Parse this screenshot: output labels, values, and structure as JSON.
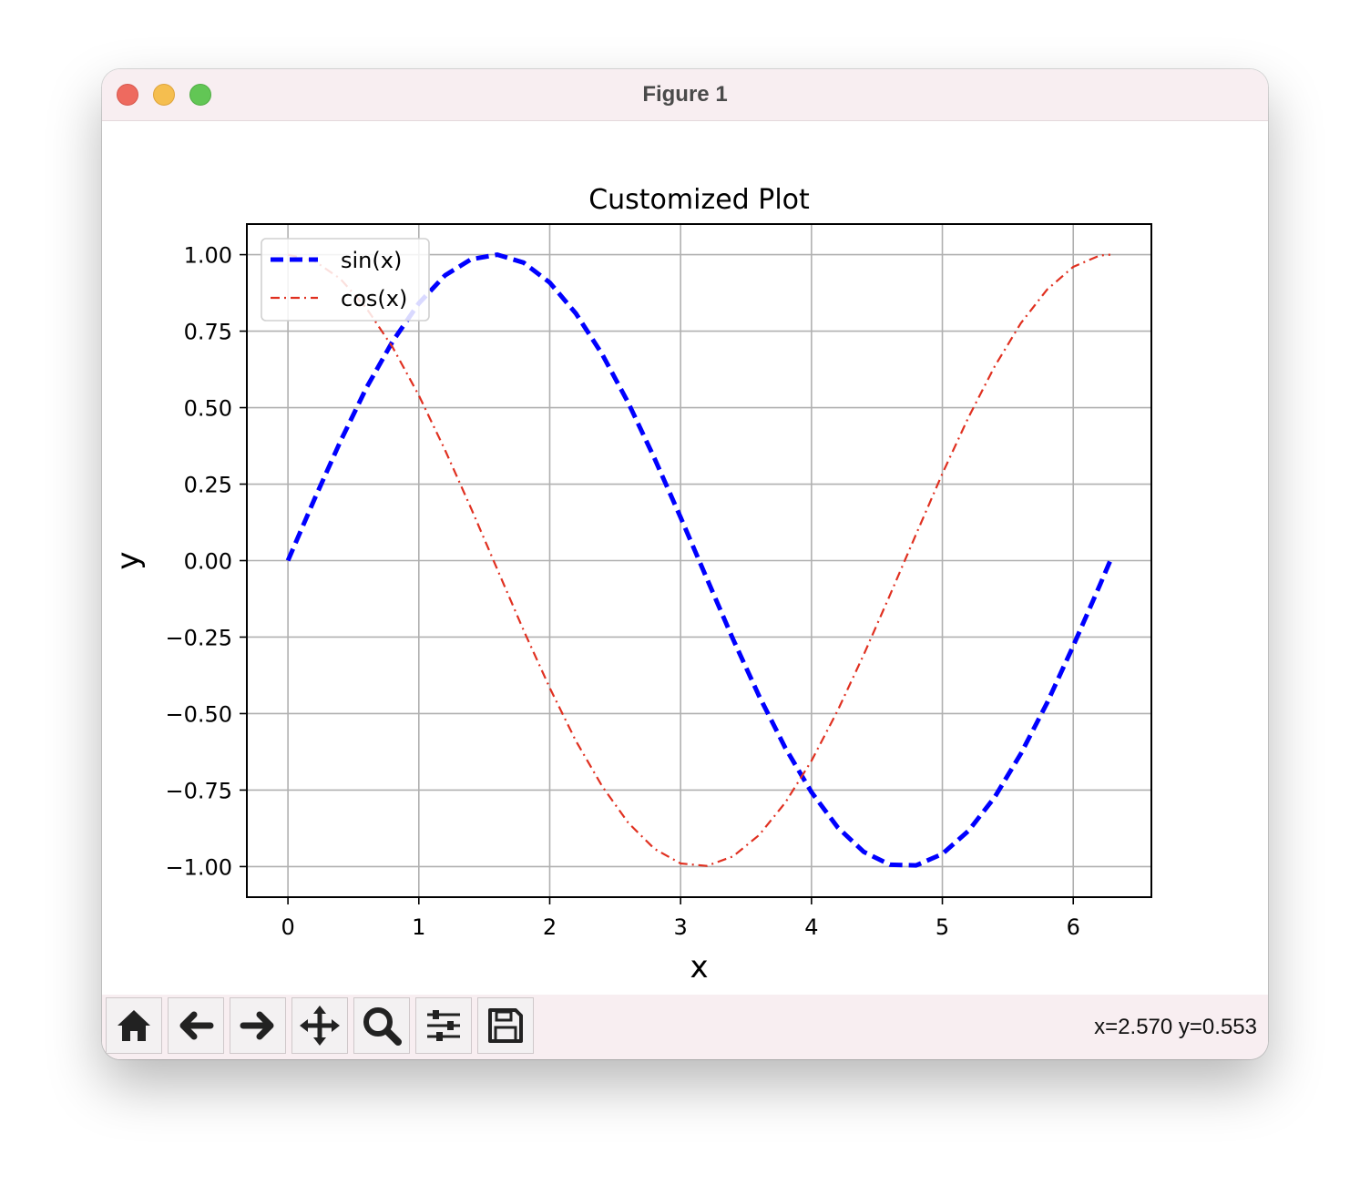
{
  "window": {
    "title": "Figure 1"
  },
  "toolbar": {
    "buttons": [
      {
        "name": "home-button",
        "icon": "home-icon"
      },
      {
        "name": "back-button",
        "icon": "arrow-left-icon"
      },
      {
        "name": "forward-button",
        "icon": "arrow-right-icon"
      },
      {
        "name": "pan-button",
        "icon": "move-icon"
      },
      {
        "name": "zoom-button",
        "icon": "magnifier-icon"
      },
      {
        "name": "configure-subplots-button",
        "icon": "sliders-icon"
      },
      {
        "name": "save-button",
        "icon": "floppy-disk-icon"
      }
    ],
    "coords": "x=2.570 y=0.553"
  },
  "chart_data": {
    "type": "line",
    "title": "Customized Plot",
    "xlabel": "x",
    "ylabel": "y",
    "xlim": [
      -0.314,
      6.597
    ],
    "ylim": [
      -1.1,
      1.1
    ],
    "xticks": [
      0,
      1,
      2,
      3,
      4,
      5,
      6
    ],
    "xtick_labels": [
      "0",
      "1",
      "2",
      "3",
      "4",
      "5",
      "6"
    ],
    "yticks": [
      -1.0,
      -0.75,
      -0.5,
      -0.25,
      0.0,
      0.25,
      0.5,
      0.75,
      1.0
    ],
    "ytick_labels": [
      "−1.00",
      "−0.75",
      "−0.50",
      "−0.25",
      "0.00",
      "0.25",
      "0.50",
      "0.75",
      "1.00"
    ],
    "grid": true,
    "legend_position": "upper-left",
    "x": [
      0.0,
      0.2,
      0.4,
      0.6,
      0.8,
      1.0,
      1.2,
      1.4,
      1.6,
      1.8,
      2.0,
      2.2,
      2.4,
      2.6,
      2.8,
      3.0,
      3.2,
      3.4,
      3.6,
      3.8,
      4.0,
      4.2,
      4.4,
      4.6,
      4.8,
      5.0,
      5.2,
      5.4,
      5.6,
      5.8,
      6.0,
      6.2,
      6.283
    ],
    "series": [
      {
        "name": "sin(x)",
        "color": "#0000ff",
        "style": "dashed",
        "values": [
          0.0,
          0.199,
          0.389,
          0.565,
          0.717,
          0.841,
          0.932,
          0.985,
          1.0,
          0.974,
          0.909,
          0.808,
          0.675,
          0.516,
          0.335,
          0.141,
          -0.058,
          -0.256,
          -0.443,
          -0.612,
          -0.757,
          -0.872,
          -0.952,
          -0.994,
          -0.996,
          -0.959,
          -0.883,
          -0.773,
          -0.631,
          -0.465,
          -0.279,
          -0.083,
          0.0
        ]
      },
      {
        "name": "cos(x)",
        "color": "#e03020",
        "style": "dashdot",
        "values": [
          1.0,
          0.98,
          0.921,
          0.825,
          0.697,
          0.54,
          0.362,
          0.17,
          -0.029,
          -0.227,
          -0.416,
          -0.589,
          -0.737,
          -0.857,
          -0.942,
          -0.99,
          -0.998,
          -0.967,
          -0.897,
          -0.791,
          -0.654,
          -0.49,
          -0.307,
          -0.112,
          0.087,
          0.284,
          0.469,
          0.635,
          0.776,
          0.886,
          0.96,
          0.997,
          1.0
        ]
      }
    ]
  }
}
